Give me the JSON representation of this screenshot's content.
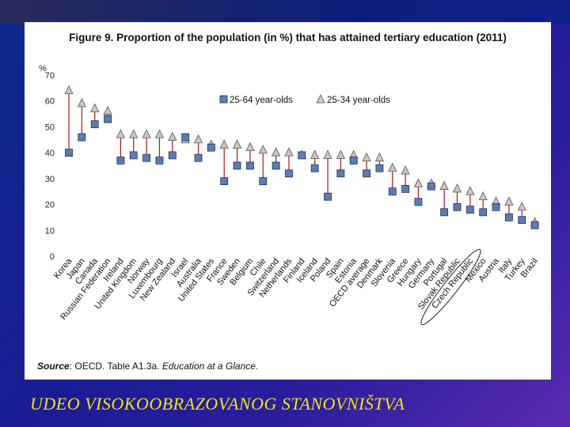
{
  "slide": {
    "caption": "UDEO VISOKOOBRAZOVANOG STANOVNIŠTVA",
    "colors": {
      "caption": "#f2e21c"
    }
  },
  "chart_data": {
    "type": "scatter",
    "title": "Figure 9. Proportion of the population (in %) that has attained tertiary education (2011)",
    "ylabel": "%",
    "xlabel": "",
    "ylim": [
      0,
      70
    ],
    "yticks": [
      0,
      10,
      20,
      30,
      40,
      50,
      60,
      70
    ],
    "grid": false,
    "legend_position": "top-center",
    "source": {
      "label": "Source",
      "text": ": OECD. Table A1.3a. ",
      "publication": "Education at a Glance."
    },
    "categories": [
      "Korea",
      "Japan",
      "Canada",
      "Russian Federation",
      "Ireland",
      "United Kingdom",
      "Norway",
      "Luxembourg",
      "New Zealand",
      "Israel",
      "Australia",
      "United States",
      "France",
      "Sweden",
      "Belgium",
      "Chile",
      "Switzerland",
      "Netherlands",
      "Finland",
      "Iceland",
      "Poland",
      "Spain",
      "Estonia",
      "OECD average",
      "Denmark",
      "Slovenia",
      "Greece",
      "Hungary",
      "Germany",
      "Portugal",
      "Slovak Republic",
      "Czech Republic",
      "Mexico",
      "Austria",
      "Italy",
      "Turkey",
      "Brazil"
    ],
    "highlighted_category": "Slovak Republic",
    "series": [
      {
        "name": "25-64 year-olds",
        "marker": "square",
        "color": "#5b7db5",
        "values": [
          40,
          46,
          51,
          53,
          37,
          39,
          38,
          37,
          39,
          46,
          38,
          42,
          29,
          35,
          35,
          29,
          35,
          32,
          39,
          34,
          23,
          32,
          37,
          32,
          34,
          25,
          26,
          21,
          27,
          17,
          19,
          18,
          17,
          19,
          15,
          14,
          12
        ]
      },
      {
        "name": "25-34 year-olds",
        "marker": "triangle",
        "color": "#c8c8c8",
        "values": [
          64,
          59,
          57,
          56,
          47,
          47,
          47,
          47,
          46,
          45,
          45,
          43,
          43,
          43,
          42,
          41,
          40,
          40,
          39,
          39,
          39,
          39,
          39,
          38,
          38,
          34,
          33,
          28,
          28,
          27,
          26,
          25,
          23,
          21,
          21,
          19,
          13
        ]
      }
    ],
    "connector_color": "#b01818"
  }
}
